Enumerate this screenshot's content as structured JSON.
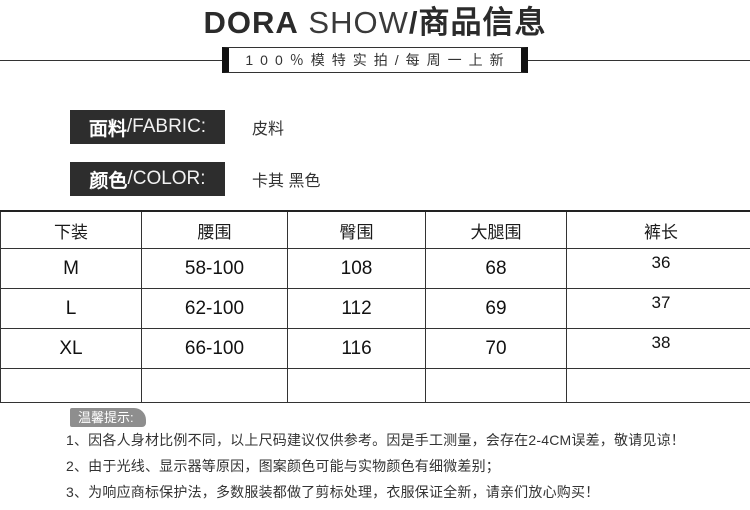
{
  "header": {
    "brand_bold": "DORA",
    "brand_light": " SHOW",
    "brand_suffix": "/商品信息",
    "tagline": "100％模特实拍/每周一上新"
  },
  "attributes": [
    {
      "label_cn": "面料",
      "label_en": "/FABRIC:",
      "value": "皮料"
    },
    {
      "label_cn": "颜色",
      "label_en": "/COLOR:",
      "value": "卡其 黑色"
    }
  ],
  "size_table": {
    "headers": [
      "下装",
      "腰围",
      "臀围",
      "大腿围",
      "裤长"
    ],
    "rows": [
      [
        "M",
        "58-100",
        "108",
        "68",
        "36"
      ],
      [
        "L",
        "62-100",
        "112",
        "69",
        "37"
      ],
      [
        "XL",
        "66-100",
        "116",
        "70",
        "38"
      ]
    ]
  },
  "notice": {
    "badge": "温馨提示:",
    "items": [
      "1、因各人身材比例不同，以上尺码建议仅供参考。因是手工测量，会存在2-4CM误差，敬请见谅！",
      "2、由于光线、显示器等原因，图案颜色可能与实物颜色有细微差别；",
      "3、为响应商标保护法，多数服装都做了剪标处理，衣服保证全新，请亲们放心购买！"
    ]
  },
  "colors": {
    "label_bg": "#2d2d2d",
    "badge_bg": "#8e8e8e",
    "border": "#333333",
    "text": "#2b2b2b"
  }
}
